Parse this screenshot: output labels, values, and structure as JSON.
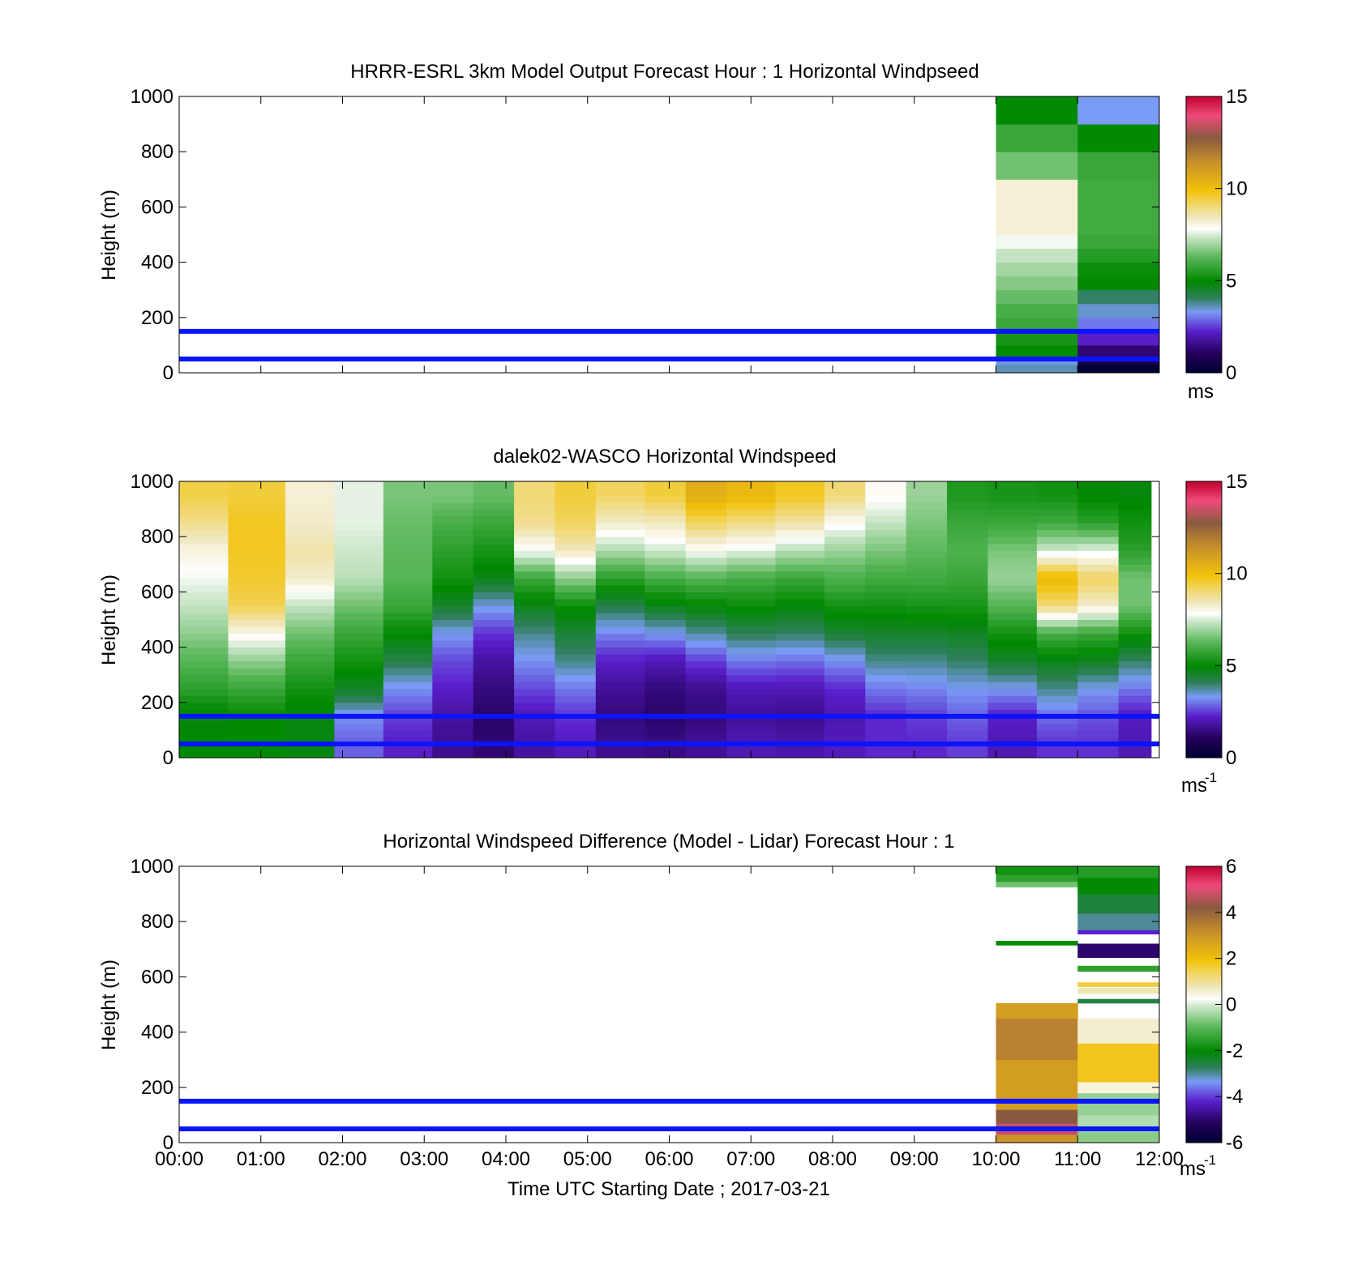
{
  "figure": {
    "xlabel": "Time UTC  Starting Date ; 2017-03-21",
    "x_tick_labels": [
      "00:00",
      "01:00",
      "02:00",
      "03:00",
      "04:00",
      "05:00",
      "06:00",
      "07:00",
      "08:00",
      "09:00",
      "10:00",
      "11:00",
      "12:00"
    ]
  },
  "colorscale": {
    "stops": [
      {
        "t": 0.0,
        "c": "#000033"
      },
      {
        "t": 0.07,
        "c": "#24005a"
      },
      {
        "t": 0.15,
        "c": "#5a1fcc"
      },
      {
        "t": 0.22,
        "c": "#7a9bf5"
      },
      {
        "t": 0.27,
        "c": "#2e7f5a"
      },
      {
        "t": 0.33,
        "c": "#008800"
      },
      {
        "t": 0.42,
        "c": "#5cb85c"
      },
      {
        "t": 0.5,
        "c": "#d8ecd6"
      },
      {
        "t": 0.52,
        "c": "#ffffff"
      },
      {
        "t": 0.56,
        "c": "#f0e8c0"
      },
      {
        "t": 0.66,
        "c": "#f2c20a"
      },
      {
        "t": 0.76,
        "c": "#c8902a"
      },
      {
        "t": 0.85,
        "c": "#8a5a40"
      },
      {
        "t": 0.93,
        "c": "#ee4a7a"
      },
      {
        "t": 1.0,
        "c": "#c00030"
      }
    ]
  },
  "chart_data": [
    {
      "type": "heatmap",
      "title": "HRRR-ESRL 3km Model Output   Forecast Hour : 1 Horizontal Windpseed",
      "xlabel": "",
      "ylabel": "Height (m)",
      "xlim": [
        0,
        12
      ],
      "ylim": [
        0,
        1000
      ],
      "y_ticks": [
        0,
        200,
        400,
        600,
        800,
        1000
      ],
      "grid": false,
      "colorbar": {
        "min": 0,
        "max": 15,
        "ticks": [
          0,
          5,
          10,
          15
        ],
        "unit": "ms",
        "unit_sup": ""
      },
      "reference_lines_height_m": [
        50,
        150
      ],
      "columns": [
        {
          "t_start": 10,
          "t_end": 11,
          "cells": [
            {
              "h0": 0,
              "h1": 30,
              "v": 3.6
            },
            {
              "h0": 30,
              "h1": 50,
              "v": 3.4
            },
            {
              "h0": 50,
              "h1": 100,
              "v": 5.0
            },
            {
              "h0": 100,
              "h1": 150,
              "v": 5.3
            },
            {
              "h0": 150,
              "h1": 200,
              "v": 5.8
            },
            {
              "h0": 200,
              "h1": 250,
              "v": 6.0
            },
            {
              "h0": 250,
              "h1": 300,
              "v": 6.4
            },
            {
              "h0": 300,
              "h1": 350,
              "v": 6.7
            },
            {
              "h0": 350,
              "h1": 400,
              "v": 7.0
            },
            {
              "h0": 400,
              "h1": 450,
              "v": 7.3
            },
            {
              "h0": 450,
              "h1": 500,
              "v": 7.7
            },
            {
              "h0": 500,
              "h1": 700,
              "v": 8.2
            },
            {
              "h0": 700,
              "h1": 800,
              "v": 6.5
            },
            {
              "h0": 800,
              "h1": 900,
              "v": 5.8
            },
            {
              "h0": 900,
              "h1": 1000,
              "v": 5.0
            }
          ]
        },
        {
          "t_start": 11,
          "t_end": 12,
          "cells": [
            {
              "h0": 0,
              "h1": 30,
              "v": 0.0
            },
            {
              "h0": 30,
              "h1": 50,
              "v": 0.8
            },
            {
              "h0": 50,
              "h1": 100,
              "v": 1.3
            },
            {
              "h0": 100,
              "h1": 150,
              "v": 2.2
            },
            {
              "h0": 150,
              "h1": 200,
              "v": 3.0
            },
            {
              "h0": 200,
              "h1": 250,
              "v": 3.5
            },
            {
              "h0": 250,
              "h1": 300,
              "v": 4.0
            },
            {
              "h0": 300,
              "h1": 350,
              "v": 5.0
            },
            {
              "h0": 350,
              "h1": 400,
              "v": 5.1
            },
            {
              "h0": 400,
              "h1": 450,
              "v": 5.5
            },
            {
              "h0": 450,
              "h1": 500,
              "v": 5.8
            },
            {
              "h0": 500,
              "h1": 700,
              "v": 5.9
            },
            {
              "h0": 700,
              "h1": 800,
              "v": 5.8
            },
            {
              "h0": 800,
              "h1": 900,
              "v": 5.0
            },
            {
              "h0": 900,
              "h1": 1000,
              "v": 3.3
            }
          ]
        }
      ]
    },
    {
      "type": "heatmap",
      "title": "dalek02-WASCO  Horizontal Windspeed",
      "xlabel": "",
      "ylabel": "Height (m)",
      "xlim": [
        0,
        12
      ],
      "ylim": [
        0,
        1000
      ],
      "y_ticks": [
        0,
        200,
        400,
        600,
        800,
        1000
      ],
      "grid": false,
      "colorbar": {
        "min": 0,
        "max": 15,
        "ticks": [
          0,
          5,
          10,
          15
        ],
        "unit": "ms",
        "unit_sup": "-1"
      },
      "reference_lines_height_m": [
        50,
        150
      ],
      "profile_levels_m": [
        50,
        150,
        250,
        350,
        450,
        550,
        650,
        750,
        850,
        950
      ],
      "profiles": [
        {
          "t_start": 0.0,
          "t_end": 0.6,
          "v": [
            5.0,
            4.8,
            5.6,
            6.2,
            6.8,
            7.3,
            7.7,
            8.1,
            8.8,
            9.4
          ]
        },
        {
          "t_start": 0.6,
          "t_end": 1.3,
          "v": [
            5.0,
            5.0,
            5.8,
            6.8,
            8.0,
            9.3,
            9.6,
            9.7,
            9.7,
            9.5
          ]
        },
        {
          "t_start": 1.3,
          "t_end": 1.9,
          "v": [
            4.8,
            4.8,
            5.2,
            5.8,
            6.5,
            7.3,
            8.3,
            8.6,
            8.3,
            8.2
          ]
        },
        {
          "t_start": 1.9,
          "t_end": 2.5,
          "v": [
            2.8,
            3.2,
            4.6,
            5.2,
            5.8,
            6.5,
            7.2,
            7.4,
            7.6,
            7.6
          ]
        },
        {
          "t_start": 2.5,
          "t_end": 3.1,
          "v": [
            2.2,
            2.5,
            3.2,
            4.2,
            5.0,
            5.8,
            6.2,
            6.3,
            6.4,
            6.6
          ]
        },
        {
          "t_start": 3.1,
          "t_end": 3.6,
          "v": [
            1.6,
            1.8,
            2.2,
            2.6,
            3.3,
            4.5,
            5.2,
            5.6,
            6.0,
            6.6
          ]
        },
        {
          "t_start": 3.6,
          "t_end": 4.1,
          "v": [
            1.3,
            1.2,
            1.4,
            1.8,
            2.4,
            3.4,
            4.7,
            5.3,
            5.8,
            6.4
          ]
        },
        {
          "t_start": 4.1,
          "t_end": 4.6,
          "v": [
            1.8,
            2.0,
            2.6,
            3.2,
            3.8,
            4.7,
            5.8,
            7.8,
            8.8,
            9.0
          ]
        },
        {
          "t_start": 4.6,
          "t_end": 5.1,
          "v": [
            2.1,
            2.4,
            3.0,
            3.8,
            4.4,
            5.1,
            6.8,
            8.4,
            9.2,
            9.5
          ]
        },
        {
          "t_start": 5.1,
          "t_end": 5.7,
          "v": [
            1.6,
            1.4,
            1.7,
            2.2,
            3.1,
            4.2,
            5.6,
            7.1,
            8.3,
            9.2
          ]
        },
        {
          "t_start": 5.7,
          "t_end": 6.2,
          "v": [
            1.5,
            1.2,
            1.4,
            2.0,
            3.3,
            4.7,
            6.0,
            7.4,
            8.4,
            9.5
          ]
        },
        {
          "t_start": 6.2,
          "t_end": 6.7,
          "v": [
            1.7,
            1.4,
            1.6,
            2.5,
            3.7,
            4.9,
            6.2,
            7.8,
            9.2,
            10.5
          ]
        },
        {
          "t_start": 6.7,
          "t_end": 7.3,
          "v": [
            2.0,
            1.7,
            2.0,
            3.0,
            4.1,
            5.1,
            6.0,
            7.6,
            8.9,
            10.2
          ]
        },
        {
          "t_start": 7.3,
          "t_end": 7.9,
          "v": [
            1.9,
            1.6,
            2.0,
            2.9,
            4.0,
            4.9,
            5.8,
            7.2,
            8.6,
            9.7
          ]
        },
        {
          "t_start": 7.9,
          "t_end": 8.4,
          "v": [
            2.1,
            1.9,
            2.3,
            3.2,
            4.4,
            5.2,
            6.1,
            6.9,
            7.9,
            9.0
          ]
        },
        {
          "t_start": 8.4,
          "t_end": 8.9,
          "v": [
            2.3,
            2.3,
            3.0,
            3.8,
            4.5,
            5.2,
            5.9,
            6.6,
            7.3,
            7.9
          ]
        },
        {
          "t_start": 8.9,
          "t_end": 9.4,
          "v": [
            2.3,
            2.5,
            3.1,
            3.8,
            4.5,
            5.3,
            5.9,
            6.3,
            6.6,
            6.9
          ]
        },
        {
          "t_start": 9.4,
          "t_end": 9.9,
          "v": [
            2.5,
            2.8,
            3.3,
            4.0,
            4.6,
            5.3,
            5.8,
            6.1,
            5.8,
            5.4
          ]
        },
        {
          "t_start": 9.9,
          "t_end": 10.5,
          "v": [
            2.0,
            2.2,
            3.3,
            4.5,
            5.2,
            6.2,
            6.9,
            6.6,
            5.8,
            5.3
          ]
        },
        {
          "t_start": 10.5,
          "t_end": 11.0,
          "v": [
            2.4,
            2.9,
            3.8,
            4.7,
            6.0,
            9.0,
            10.2,
            7.4,
            5.9,
            5.2
          ]
        },
        {
          "t_start": 11.0,
          "t_end": 11.5,
          "v": [
            2.4,
            2.7,
            3.3,
            4.6,
            5.8,
            8.3,
            9.2,
            7.6,
            5.6,
            4.9
          ]
        },
        {
          "t_start": 11.5,
          "t_end": 11.9,
          "v": [
            2.0,
            2.1,
            3.0,
            4.0,
            5.2,
            6.5,
            6.5,
            5.6,
            5.2,
            4.8
          ]
        }
      ]
    },
    {
      "type": "heatmap",
      "title": "Horizontal Windspeed Difference (Model - Lidar) Forecast Hour : 1",
      "xlabel": "Time UTC  Starting Date ; 2017-03-21",
      "ylabel": "Height (m)",
      "xlim": [
        0,
        12
      ],
      "ylim": [
        0,
        1000
      ],
      "y_ticks": [
        0,
        200,
        400,
        600,
        800,
        1000
      ],
      "grid": false,
      "colorbar": {
        "min": -6,
        "max": 6,
        "ticks": [
          -6,
          -4,
          -2,
          0,
          2,
          4,
          6
        ],
        "unit": "ms",
        "unit_sup": "-1"
      },
      "reference_lines_height_m": [
        50,
        150
      ],
      "columns": [
        {
          "t_start": 10,
          "t_end": 11,
          "cells": [
            {
              "h0": 0,
              "h1": 30,
              "v": 3.0
            },
            {
              "h0": 30,
              "h1": 70,
              "v": 4.8
            },
            {
              "h0": 70,
              "h1": 120,
              "v": 4.2
            },
            {
              "h0": 120,
              "h1": 300,
              "v": 2.8
            },
            {
              "h0": 300,
              "h1": 450,
              "v": 3.4
            },
            {
              "h0": 450,
              "h1": 505,
              "v": 2.8
            },
            {
              "h0": 715,
              "h1": 730,
              "v": -2.0
            },
            {
              "h0": 925,
              "h1": 945,
              "v": -0.8
            },
            {
              "h0": 945,
              "h1": 970,
              "v": -1.5
            },
            {
              "h0": 970,
              "h1": 1000,
              "v": -1.8
            }
          ]
        },
        {
          "t_start": 11,
          "t_end": 12,
          "cells": [
            {
              "h0": 0,
              "h1": 40,
              "v": -0.6
            },
            {
              "h0": 40,
              "h1": 100,
              "v": -0.3
            },
            {
              "h0": 100,
              "h1": 180,
              "v": -0.5
            },
            {
              "h0": 180,
              "h1": 220,
              "v": 0.5
            },
            {
              "h0": 220,
              "h1": 360,
              "v": 1.8
            },
            {
              "h0": 360,
              "h1": 450,
              "v": 0.6
            },
            {
              "h0": 505,
              "h1": 520,
              "v": -2.6
            },
            {
              "h0": 540,
              "h1": 560,
              "v": 0.8
            },
            {
              "h0": 565,
              "h1": 580,
              "v": 1.6
            },
            {
              "h0": 620,
              "h1": 640,
              "v": -1.5
            },
            {
              "h0": 670,
              "h1": 720,
              "v": -5.0
            },
            {
              "h0": 755,
              "h1": 770,
              "v": -4.2
            },
            {
              "h0": 770,
              "h1": 830,
              "v": -3.0
            },
            {
              "h0": 830,
              "h1": 900,
              "v": -2.5
            },
            {
              "h0": 900,
              "h1": 960,
              "v": -2.0
            },
            {
              "h0": 960,
              "h1": 1000,
              "v": -1.6
            }
          ]
        }
      ]
    }
  ]
}
